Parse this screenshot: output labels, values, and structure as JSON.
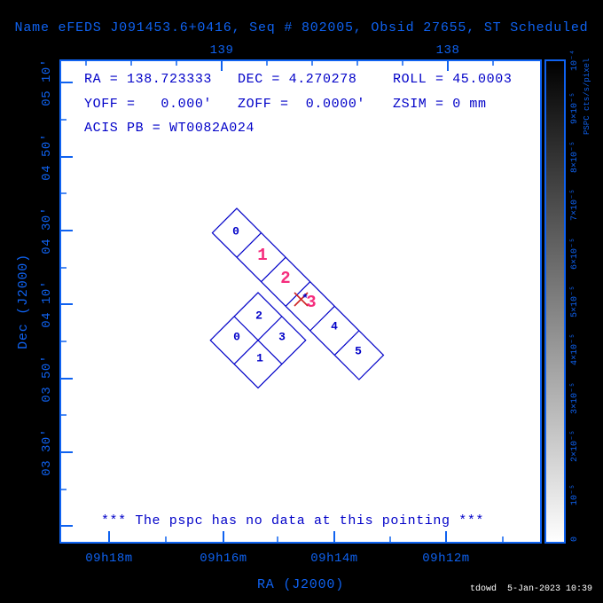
{
  "colors": {
    "background": "#000000",
    "plot_bg": "#ffffff",
    "axis_blue": "#0f62f0",
    "navy": "#0000c8",
    "pink": "#f52d7d",
    "red": "#cf2525",
    "white": "#ffffff"
  },
  "header": {
    "title": "Name eFEDS J091453.6+0416, Seq # 802005, Obsid 27655, ST Scheduled"
  },
  "pointing_info": {
    "ra": "RA = 138.723333",
    "dec": "DEC = 4.270278",
    "roll": "ROLL = 45.0003",
    "yoff": "YOFF =   0.000'",
    "zoff": "ZOFF =  0.0000'",
    "zsim": "ZSIM = 0 mm",
    "acis_pb": "ACIS PB = WT0082A024"
  },
  "message": "*** The pspc has no data at this pointing ***",
  "axes": {
    "xlabel": "RA (J2000)",
    "ylabel": "Dec (J2000)",
    "x_ticks": [
      "09h18m",
      "09h16m",
      "09h14m",
      "09h12m"
    ],
    "top_ticks": [
      "139",
      "138"
    ],
    "y_ticks": [
      "05 10'",
      "04 50'",
      "04 30'",
      "04 10'",
      "03 50'",
      "03 30'"
    ]
  },
  "chips": {
    "s_array": [
      "0",
      "1",
      "2",
      "3",
      "4",
      "5"
    ],
    "i_array": [
      "0",
      "1",
      "2",
      "3"
    ],
    "aimpoint_marker": "*"
  },
  "colorbar": {
    "title": "PSPC cts/s/pixel",
    "tick_labels": [
      "10⁻⁴",
      "9×10⁻⁵",
      "8×10⁻⁵",
      "7×10⁻⁵",
      "6×10⁻⁵",
      "5×10⁻⁵",
      "4×10⁻⁵",
      "3×10⁻⁵",
      "2×10⁻⁵",
      "10⁻⁵",
      "0"
    ]
  },
  "footer": {
    "credit": "tdowd  5-Jan-2023 10:39"
  },
  "chart_data": {
    "type": "scatter",
    "title": "Name eFEDS J091453.6+0416, Seq # 802005, Obsid 27655, ST Scheduled",
    "xlabel": "RA (J2000)",
    "ylabel": "Dec (J2000)",
    "x_tick_labels": [
      "09h18m",
      "09h16m",
      "09h14m",
      "09h12m"
    ],
    "x_top_tick_labels_deg": [
      139,
      138
    ],
    "y_tick_labels": [
      "05 10'",
      "04 50'",
      "04 30'",
      "04 10'",
      "03 50'",
      "03 30'"
    ],
    "points": [
      {
        "name": "aimpoint",
        "ra_deg": 138.723333,
        "dec_deg": 4.270278,
        "roll_deg": 45.0003,
        "marker": "red-x"
      }
    ],
    "offsets": {
      "yoff_arcmin": 0.0,
      "zoff_arcmin": 0.0,
      "zsim_mm": 0
    },
    "acis_parameter_block": "WT0082A024",
    "overlays": [
      {
        "name": "ACIS-S chip strip",
        "chips": [
          "0",
          "1",
          "2",
          "3",
          "4",
          "5"
        ],
        "highlighted_chips": [
          "1",
          "2",
          "3"
        ],
        "rotation_deg": 45
      },
      {
        "name": "ACIS-I 2x2 array",
        "chips": [
          "0",
          "1",
          "2",
          "3"
        ],
        "rotation_deg": 45
      }
    ],
    "colorbar": {
      "label": "PSPC cts/s/pixel",
      "min": 0,
      "max": 0.0001,
      "tick_labels": [
        "10⁻⁴",
        "9×10⁻⁵",
        "8×10⁻⁵",
        "7×10⁻⁵",
        "6×10⁻⁵",
        "5×10⁻⁵",
        "4×10⁻⁵",
        "3×10⁻⁵",
        "2×10⁻⁵",
        "10⁻⁵",
        "0"
      ],
      "gradient": "black-top to white-bottom"
    },
    "annotation": "*** The pspc has no data at this pointing ***",
    "grid": false,
    "legend": false
  }
}
